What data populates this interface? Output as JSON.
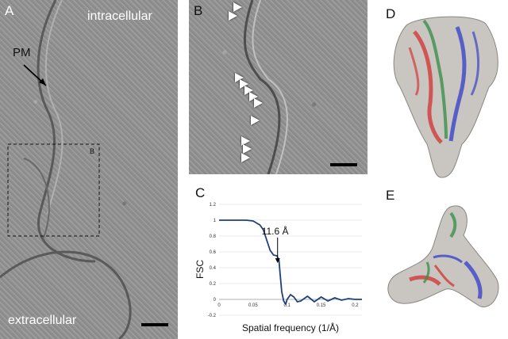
{
  "panelA": {
    "letter": "A",
    "label_top": "intracellular",
    "label_bottom": "extracellular",
    "pm_label": "PM",
    "inset_label": "B"
  },
  "panelB": {
    "letter": "B"
  },
  "panelC": {
    "letter": "C"
  },
  "panelD": {
    "letter": "D"
  },
  "panelE": {
    "letter": "E"
  },
  "chart_data": {
    "type": "line",
    "title": "",
    "xlabel": "Spatial frequency (1/Å)",
    "ylabel": "FSC",
    "annotation": "11.6 Å",
    "annotation_x": 0.086,
    "xlim": [
      0,
      0.21
    ],
    "ylim": [
      -0.2,
      1.2
    ],
    "xticks": [
      0,
      0.05,
      0.1,
      0.15,
      0.2
    ],
    "xtick_labels": [
      "0",
      "0.05",
      "0.1",
      "0.15",
      "0.2"
    ],
    "yticks": [
      -0.2,
      0,
      0.2,
      0.4,
      0.6,
      0.8,
      1,
      1.2
    ],
    "ytick_labels": [
      "-0.2",
      "0",
      "0.2",
      "0.4",
      "0.6",
      "0.8",
      "1",
      "1.2"
    ],
    "series": [
      {
        "color": "#1f3f7a",
        "x": [
          0,
          0.02,
          0.04,
          0.05,
          0.06,
          0.065,
          0.07,
          0.075,
          0.08,
          0.085,
          0.088,
          0.09,
          0.092,
          0.095,
          0.098,
          0.1,
          0.105,
          0.11,
          0.115,
          0.12,
          0.13,
          0.14,
          0.15,
          0.16,
          0.17,
          0.18,
          0.19,
          0.2,
          0.21
        ],
        "y": [
          1,
          1,
          1,
          0.99,
          0.94,
          0.88,
          0.75,
          0.62,
          0.56,
          0.55,
          0.5,
          0.3,
          0.1,
          -0.02,
          -0.06,
          0.0,
          0.06,
          0.03,
          -0.03,
          -0.02,
          0.04,
          -0.03,
          0.03,
          -0.02,
          0.02,
          -0.01,
          0.01,
          0.0,
          0.0
        ]
      }
    ]
  }
}
